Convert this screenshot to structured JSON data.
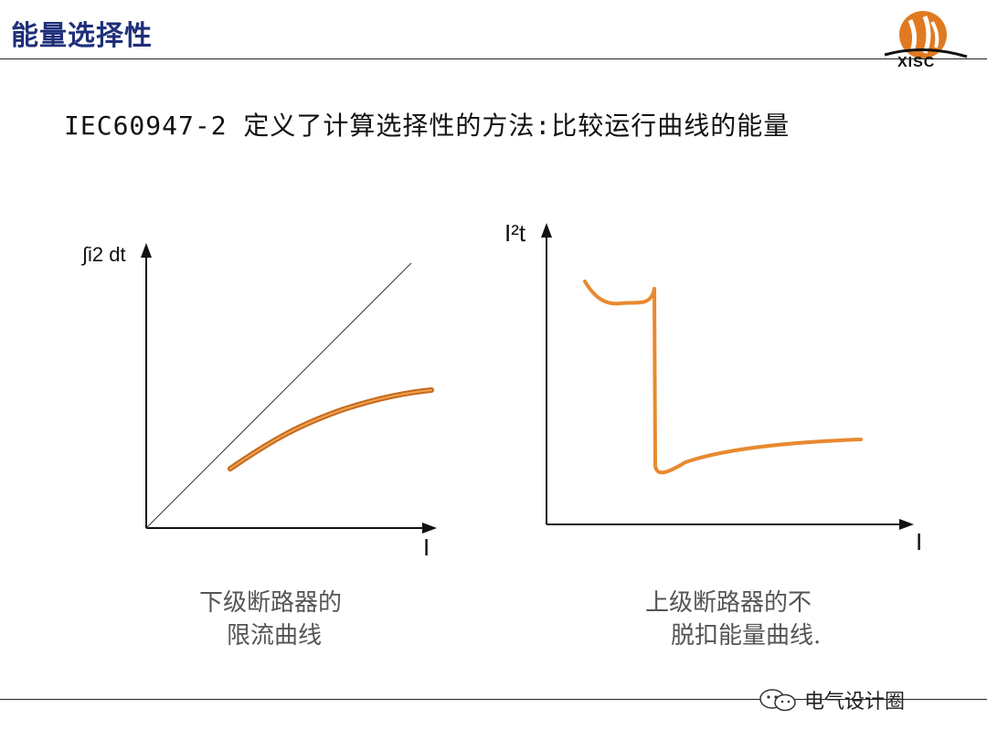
{
  "slide": {
    "title": "能量选择性",
    "logo_text": "XISC",
    "heading": "IEC60947-2 定义了计算选择性的方法:比较运行曲线的能量"
  },
  "diagram_left": {
    "y_axis_label": "∫i2 dt",
    "x_axis_label": "I",
    "caption_line1": "下级断路器的",
    "caption_line2": "限流曲线"
  },
  "diagram_right": {
    "y_axis_label": "I²t",
    "x_axis_label": "I",
    "caption_line1": "上级断路器的不",
    "caption_line2": "脱扣能量曲线."
  },
  "watermark": {
    "text": "电气设计圈",
    "icon": "wechat-icon"
  },
  "colors": {
    "title": "#1f2f7a",
    "curve": "#e8892f",
    "curve_dark": "#c46a1c",
    "axis": "#111111",
    "logo_orange": "#e07a20"
  }
}
